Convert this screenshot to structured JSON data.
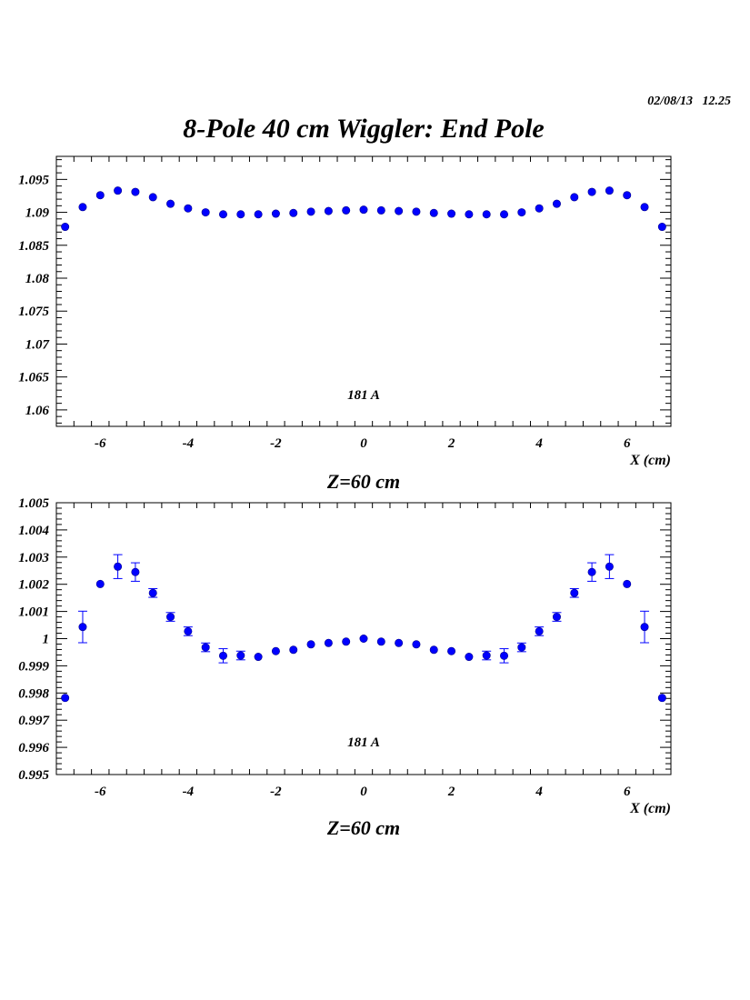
{
  "header": {
    "timestamp": "02/08/13   12.25",
    "title": "8-Pole 40 cm Wiggler: End Pole"
  },
  "colors": {
    "marker": "#0000ff",
    "axis": "#000000"
  },
  "chart_data": [
    {
      "type": "scatter",
      "subtitle": "Z=60 cm",
      "xlabel": "X (cm)",
      "ylabel": "",
      "annotation": "181 A",
      "xlim": [
        -7,
        7
      ],
      "ylim": [
        1.0575,
        1.0985
      ],
      "xticks": [
        -6,
        -4,
        -2,
        0,
        2,
        4,
        6
      ],
      "yticks": [
        1.06,
        1.065,
        1.07,
        1.075,
        1.08,
        1.085,
        1.09,
        1.095
      ],
      "ytick_labels": [
        "1.06",
        "1.065",
        "1.07",
        "1.075",
        "1.08",
        "1.085",
        "1.09",
        "1.095"
      ],
      "series": [
        {
          "x": [
            -6.8,
            -6.4,
            -6.0,
            -5.6,
            -5.2,
            -4.8,
            -4.4,
            -4.0,
            -3.6,
            -3.2,
            -2.8,
            -2.4,
            -2.0,
            -1.6,
            -1.2,
            -0.8,
            -0.4,
            0.0,
            0.4,
            0.8,
            1.2,
            1.6,
            2.0,
            2.4,
            2.8,
            3.2,
            3.6,
            4.0,
            4.4,
            4.8,
            5.2,
            5.6,
            6.0,
            6.4,
            6.8
          ],
          "y": [
            1.0878,
            1.0908,
            1.0926,
            1.0933,
            1.0931,
            1.0923,
            1.0913,
            1.0906,
            1.09,
            1.0897,
            1.0897,
            1.0897,
            1.0898,
            1.0899,
            1.0901,
            1.0902,
            1.0903,
            1.0904,
            1.0903,
            1.0902,
            1.0901,
            1.0899,
            1.0898,
            1.0897,
            1.0897,
            1.0897,
            1.09,
            1.0906,
            1.0913,
            1.0923,
            1.0931,
            1.0933,
            1.0926,
            1.0908,
            1.0878
          ],
          "err": [
            0.0002,
            0.0006,
            0.0002,
            0.0002,
            0.0002,
            0.0002,
            0.0002,
            0.0002,
            0.0002,
            0.0002,
            0.0002,
            0.0002,
            0.0002,
            0.0002,
            0.0002,
            0.0002,
            0.0002,
            0.0002,
            0.0002,
            0.0002,
            0.0002,
            0.0002,
            0.0002,
            0.0002,
            0.0002,
            0.0002,
            0.0002,
            0.0002,
            0.0002,
            0.0002,
            0.0002,
            0.0002,
            0.0002,
            0.0006,
            0.0002
          ]
        }
      ]
    },
    {
      "type": "scatter",
      "subtitle": "Z=60 cm",
      "xlabel": "X (cm)",
      "ylabel": "",
      "annotation": "181 A",
      "xlim": [
        -7,
        7
      ],
      "ylim": [
        0.995,
        1.005
      ],
      "xticks": [
        -6,
        -4,
        -2,
        0,
        2,
        4,
        6
      ],
      "yticks": [
        0.995,
        0.996,
        0.997,
        0.998,
        0.999,
        1.0,
        1.001,
        1.002,
        1.003,
        1.004,
        1.005
      ],
      "ytick_labels": [
        "0.995",
        "0.996",
        "0.997",
        "0.998",
        "0.999",
        "1",
        "1.001",
        "1.002",
        "1.003",
        "1.004",
        "1.005"
      ],
      "series": [
        {
          "x": [
            -6.8,
            -6.4,
            -6.0,
            -5.6,
            -5.2,
            -4.8,
            -4.4,
            -4.0,
            -3.6,
            -3.2,
            -2.8,
            -2.4,
            -2.0,
            -1.6,
            -1.2,
            -0.8,
            -0.4,
            0.0,
            0.4,
            0.8,
            1.2,
            1.6,
            2.0,
            2.4,
            2.8,
            3.2,
            3.6,
            4.0,
            4.4,
            4.8,
            5.2,
            5.6,
            6.0,
            6.4,
            6.8
          ],
          "y": [
            0.99782,
            1.00043,
            1.00201,
            1.00265,
            1.00245,
            1.00168,
            1.0008,
            1.00027,
            0.99968,
            0.99937,
            0.99938,
            0.99933,
            0.99954,
            0.99959,
            0.99979,
            0.99984,
            0.99989,
            1.0,
            0.99989,
            0.99984,
            0.99979,
            0.99959,
            0.99954,
            0.99933,
            0.99938,
            0.99937,
            0.99968,
            1.00027,
            1.0008,
            1.00168,
            1.00245,
            1.00265,
            1.00201,
            1.00043,
            0.99782
          ],
          "err": [
            3e-05,
            0.00058,
            6e-05,
            0.00044,
            0.00034,
            0.00016,
            0.00016,
            0.00016,
            0.00016,
            0.00026,
            0.00016,
            0.00014,
            8e-05,
            6e-05,
            6e-05,
            6e-05,
            6e-05,
            6e-05,
            6e-05,
            6e-05,
            6e-05,
            6e-05,
            8e-05,
            0.00014,
            0.00016,
            0.00026,
            0.00016,
            0.00016,
            0.00016,
            0.00016,
            0.00034,
            0.00044,
            6e-05,
            0.00058,
            3e-05
          ]
        }
      ]
    }
  ]
}
